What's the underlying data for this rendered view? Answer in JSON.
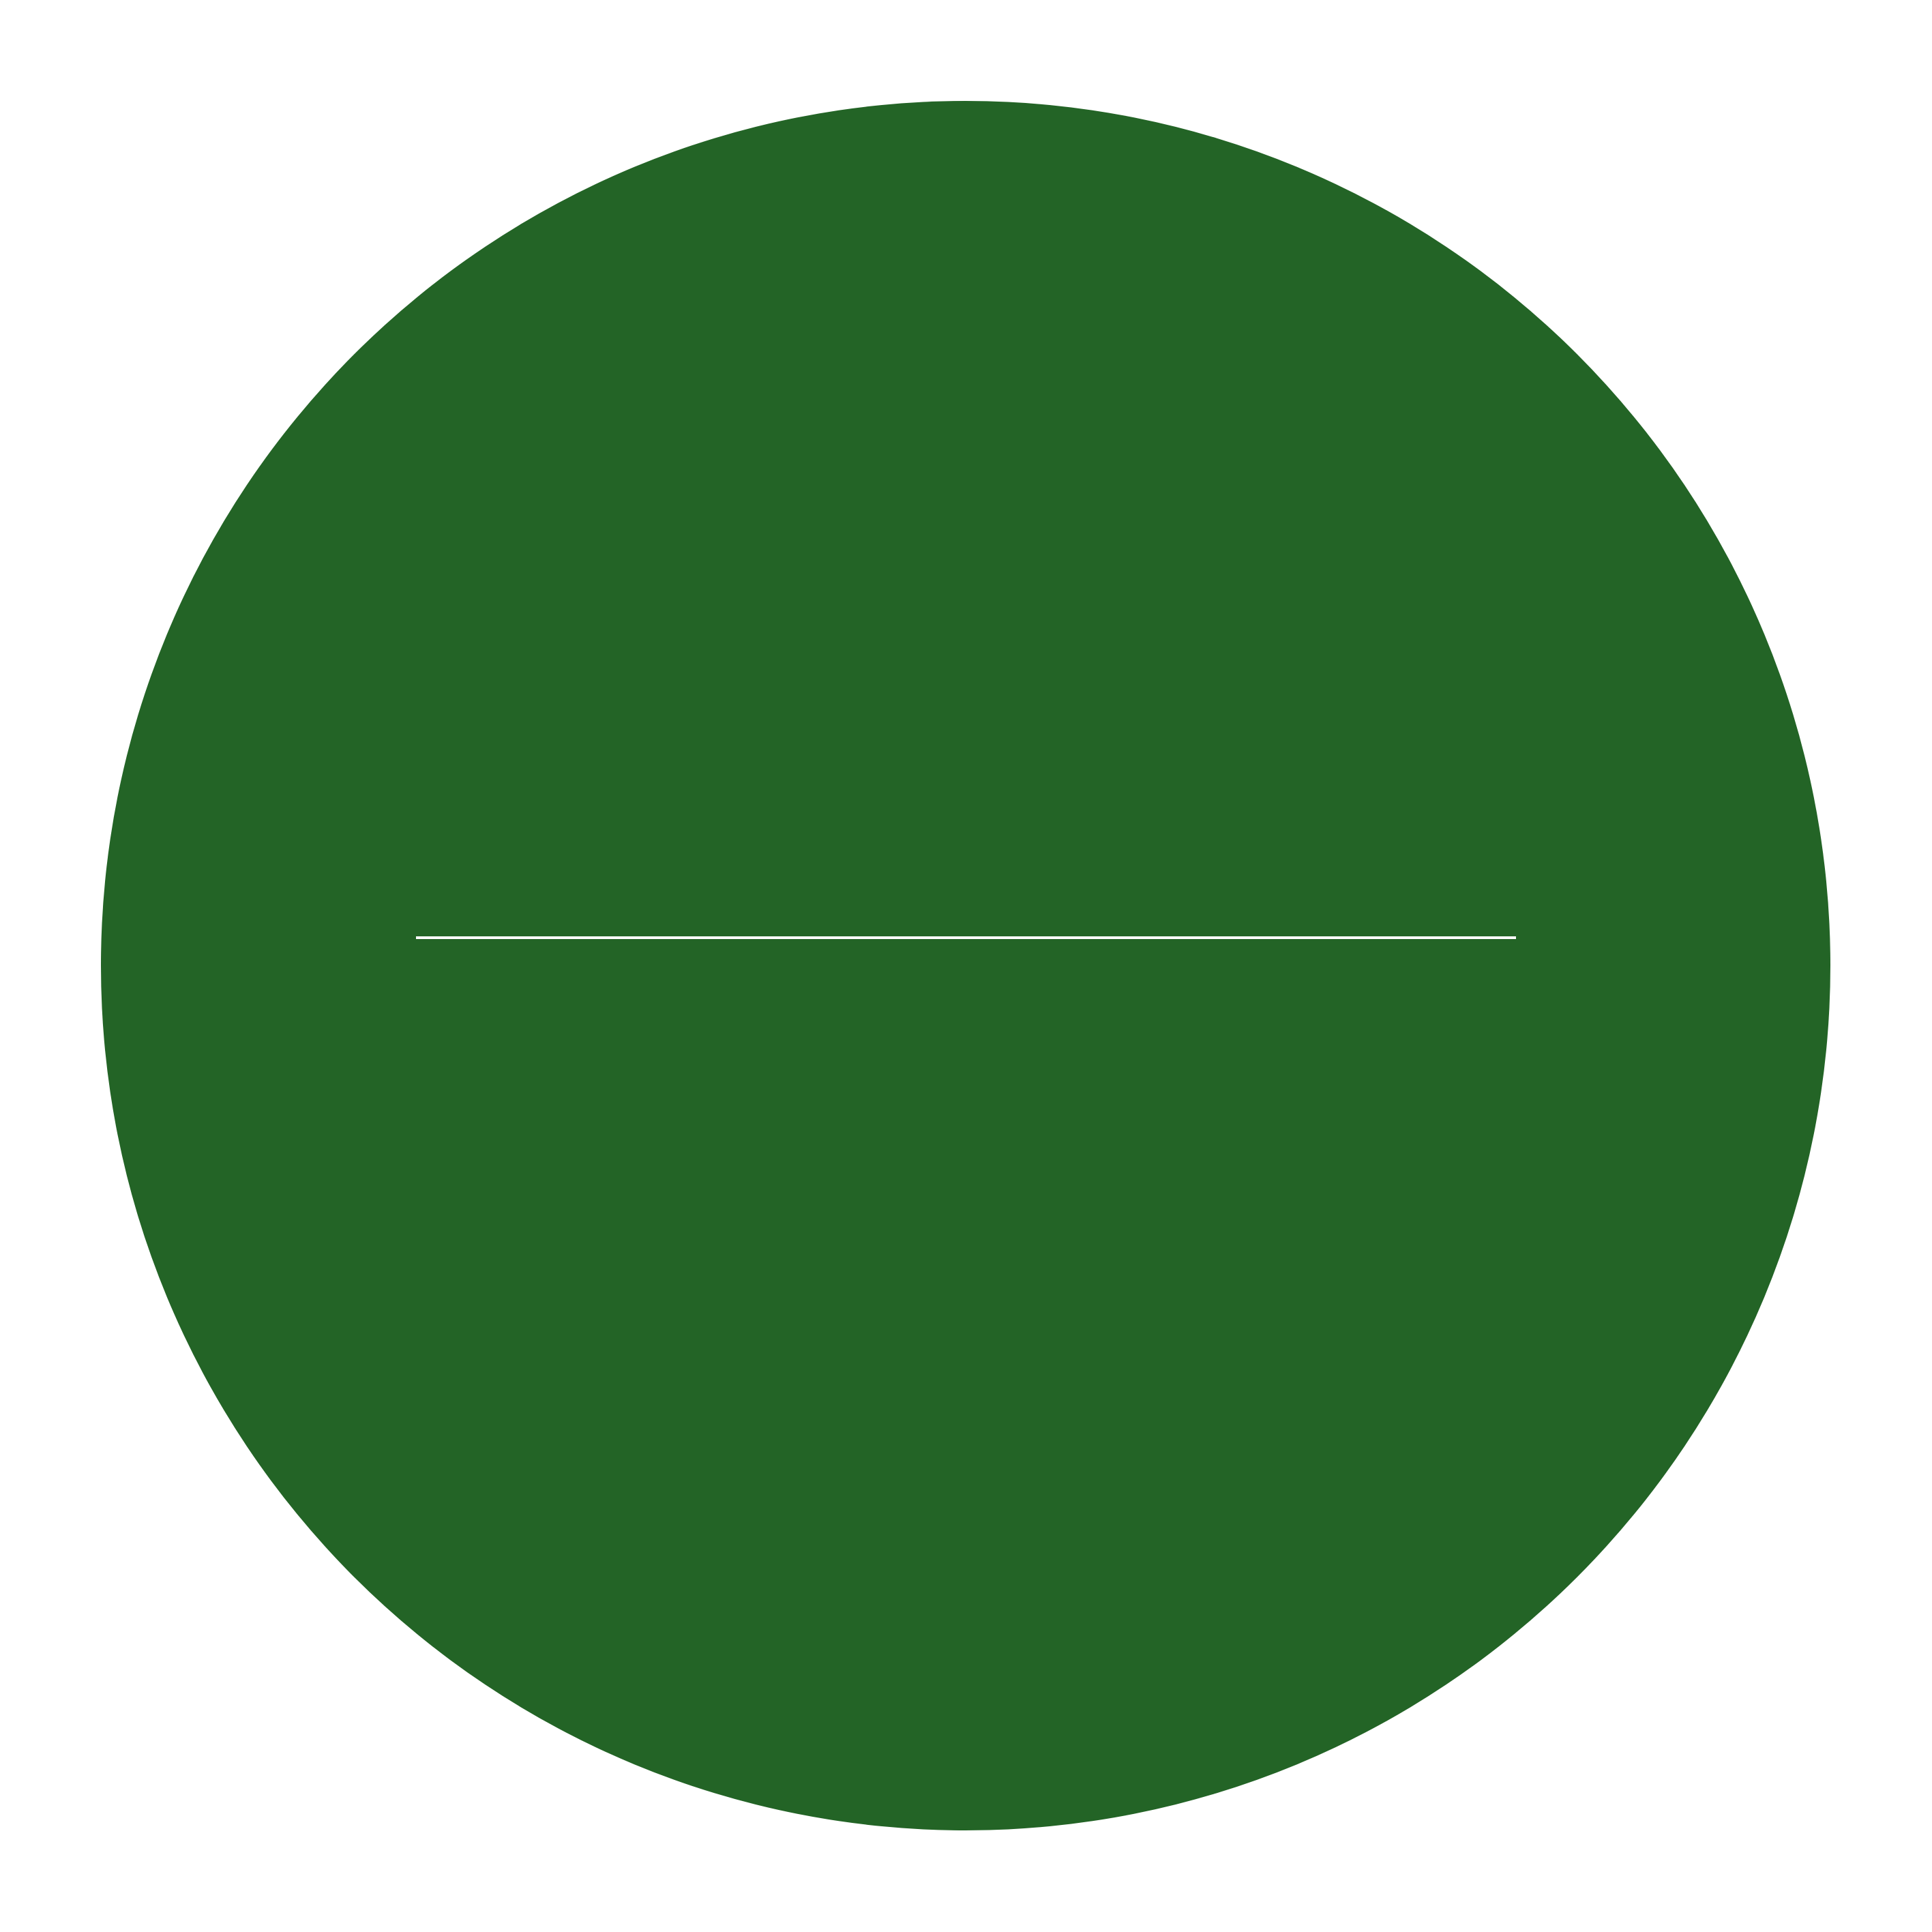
{
  "page": {
    "background_color": "#ffffff"
  },
  "symbol": {
    "icon": "minus-circle-icon",
    "fill_color": "#236426",
    "line_color": "#ffffff"
  }
}
